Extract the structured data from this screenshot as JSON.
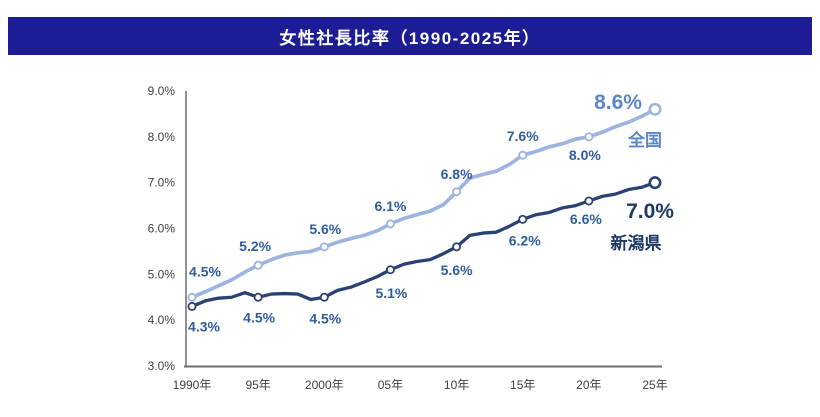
{
  "title": "女性社長比率（1990-2025年）",
  "colors": {
    "title_bar_bg": "#1C1C94",
    "title_text": "#FFFFFF",
    "axis_line": "#6E6E6E",
    "tick_text": "#404040",
    "small_label": "#2F5D9E"
  },
  "chart_data": {
    "type": "line",
    "title": "女性社長比率（1990-2025年）",
    "xlabel": "",
    "ylabel": "",
    "ylim": [
      3.0,
      9.0
    ],
    "grid": false,
    "legend_position": "end-of-line",
    "x_tick_labels": [
      "1990年",
      "95年",
      "2000年",
      "05年",
      "10年",
      "15年",
      "20年",
      "25年"
    ],
    "y_tick_labels": [
      "3.0%",
      "4.0%",
      "5.0%",
      "6.0%",
      "7.0%",
      "8.0%",
      "9.0%"
    ],
    "marker_years": [
      1990,
      1995,
      2000,
      2005,
      2010,
      2015,
      2020,
      2025
    ],
    "annual_years_start": 1990,
    "series": [
      {
        "key": "national",
        "name": "全国",
        "values": [
          4.5,
          5.2,
          5.6,
          6.1,
          6.8,
          7.6,
          8.0,
          8.6
        ],
        "labels": [
          "4.5%",
          "5.2%",
          "5.6%",
          "6.1%",
          "6.8%",
          "7.6%",
          "8.0%",
          "8.6%"
        ],
        "annual_values": [
          4.5,
          4.62,
          4.75,
          4.88,
          5.05,
          5.2,
          5.32,
          5.42,
          5.47,
          5.5,
          5.6,
          5.7,
          5.78,
          5.85,
          5.95,
          6.1,
          6.22,
          6.3,
          6.38,
          6.52,
          6.8,
          7.1,
          7.18,
          7.25,
          7.4,
          7.6,
          7.68,
          7.78,
          7.85,
          7.95,
          8.0,
          8.1,
          8.22,
          8.32,
          8.45,
          8.6
        ],
        "line_color": "#9DB4DF",
        "accent_color": "#5B87CA",
        "line_width": 3.7,
        "label_offsets": [
          [
            13,
            -26
          ],
          [
            -3,
            -19
          ],
          [
            1,
            -18
          ],
          [
            0,
            -18
          ],
          [
            0,
            -18
          ],
          [
            0,
            -19
          ],
          [
            -4,
            18
          ],
          [
            -37,
            -7
          ]
        ],
        "name_offset": [
          -10,
          31
        ]
      },
      {
        "key": "niigata",
        "name": "新潟県",
        "values": [
          4.3,
          4.5,
          4.5,
          5.1,
          5.6,
          6.2,
          6.6,
          7.0
        ],
        "labels": [
          "4.3%",
          "4.5%",
          "4.5%",
          "5.1%",
          "5.6%",
          "6.2%",
          "6.6%",
          "7.0%"
        ],
        "annual_values": [
          4.3,
          4.42,
          4.48,
          4.5,
          4.6,
          4.5,
          4.57,
          4.58,
          4.57,
          4.45,
          4.5,
          4.65,
          4.72,
          4.83,
          4.95,
          5.1,
          5.22,
          5.28,
          5.32,
          5.45,
          5.6,
          5.85,
          5.9,
          5.92,
          6.05,
          6.2,
          6.3,
          6.35,
          6.45,
          6.5,
          6.6,
          6.7,
          6.75,
          6.85,
          6.9,
          7.0
        ],
        "line_color": "#2A4273",
        "accent_color": "#1F3864",
        "line_width": 3.3,
        "label_offsets": [
          [
            12,
            20
          ],
          [
            1,
            20
          ],
          [
            1,
            21
          ],
          [
            1,
            23
          ],
          [
            0,
            23
          ],
          [
            2,
            21
          ],
          [
            -3,
            18
          ],
          [
            -5,
            29
          ]
        ],
        "name_offset": [
          -19,
          61
        ]
      }
    ]
  }
}
